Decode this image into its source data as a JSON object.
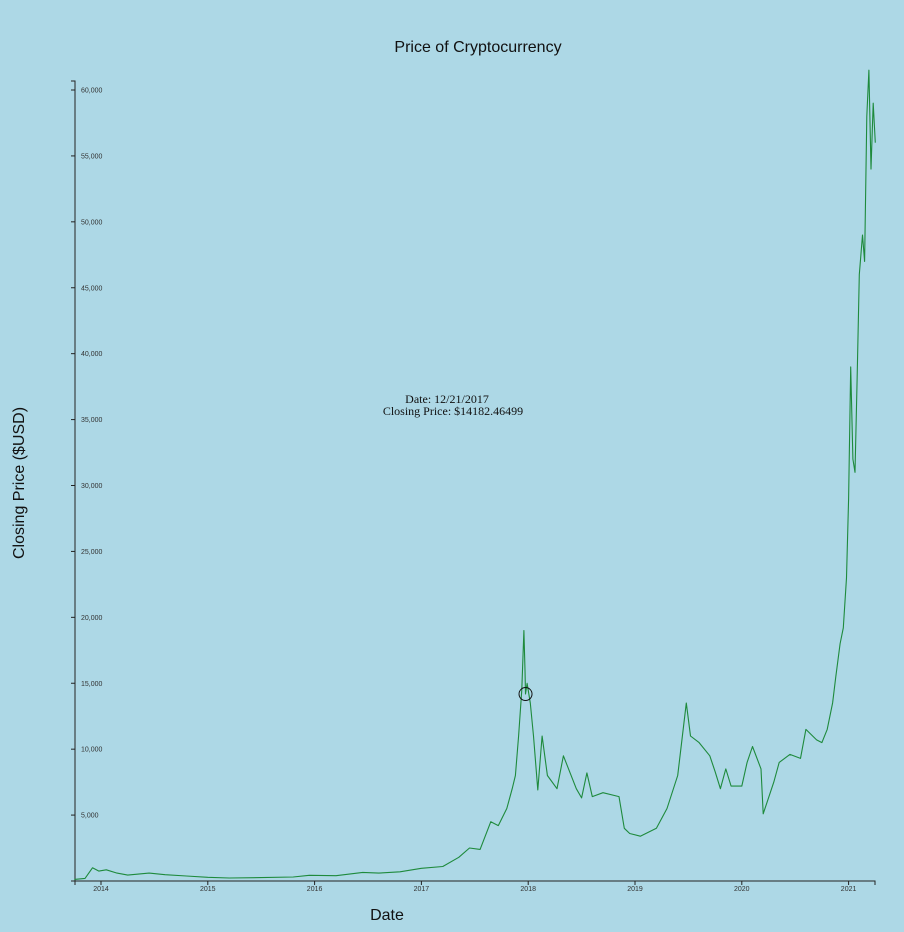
{
  "chart_data": {
    "type": "line",
    "title": "Price of Cryptocurrency",
    "xlabel": "Date",
    "ylabel": "Closing Price ($USD)",
    "xlim": [
      2013.75,
      2021.25
    ],
    "ylim": [
      0,
      60000
    ],
    "x_ticks": [
      "2014",
      "2015",
      "2016",
      "2017",
      "2018",
      "2019",
      "2020",
      "2021"
    ],
    "y_ticks": [
      "5,000",
      "10,000",
      "15,000",
      "20,000",
      "25,000",
      "30,000",
      "35,000",
      "40,000",
      "45,000",
      "50,000",
      "55,000",
      "60,000"
    ],
    "series": [
      {
        "name": "Closing Price",
        "color": "#1e8a3c",
        "points": [
          [
            2013.75,
            120
          ],
          [
            2013.85,
            200
          ],
          [
            2013.92,
            1000
          ],
          [
            2013.98,
            750
          ],
          [
            2014.05,
            850
          ],
          [
            2014.15,
            600
          ],
          [
            2014.25,
            450
          ],
          [
            2014.45,
            600
          ],
          [
            2014.6,
            480
          ],
          [
            2014.8,
            380
          ],
          [
            2015.0,
            280
          ],
          [
            2015.2,
            230
          ],
          [
            2015.5,
            260
          ],
          [
            2015.8,
            300
          ],
          [
            2015.95,
            430
          ],
          [
            2016.2,
            400
          ],
          [
            2016.45,
            650
          ],
          [
            2016.6,
            600
          ],
          [
            2016.8,
            700
          ],
          [
            2017.0,
            960
          ],
          [
            2017.2,
            1100
          ],
          [
            2017.35,
            1800
          ],
          [
            2017.45,
            2500
          ],
          [
            2017.55,
            2400
          ],
          [
            2017.65,
            4500
          ],
          [
            2017.72,
            4200
          ],
          [
            2017.8,
            5500
          ],
          [
            2017.85,
            7000
          ],
          [
            2017.88,
            8000
          ],
          [
            2017.91,
            11000
          ],
          [
            2017.94,
            14500
          ],
          [
            2017.96,
            19000
          ],
          [
            2017.97,
            16000
          ],
          [
            2017.975,
            14182
          ],
          [
            2017.99,
            15000
          ],
          [
            2018.02,
            13500
          ],
          [
            2018.05,
            11000
          ],
          [
            2018.09,
            6900
          ],
          [
            2018.13,
            11000
          ],
          [
            2018.18,
            8000
          ],
          [
            2018.27,
            7000
          ],
          [
            2018.33,
            9500
          ],
          [
            2018.45,
            7000
          ],
          [
            2018.5,
            6300
          ],
          [
            2018.55,
            8200
          ],
          [
            2018.6,
            6400
          ],
          [
            2018.7,
            6700
          ],
          [
            2018.85,
            6400
          ],
          [
            2018.9,
            4000
          ],
          [
            2018.95,
            3600
          ],
          [
            2019.05,
            3400
          ],
          [
            2019.2,
            4000
          ],
          [
            2019.3,
            5500
          ],
          [
            2019.4,
            8000
          ],
          [
            2019.48,
            13500
          ],
          [
            2019.52,
            11000
          ],
          [
            2019.6,
            10500
          ],
          [
            2019.7,
            9500
          ],
          [
            2019.75,
            8300
          ],
          [
            2019.8,
            7000
          ],
          [
            2019.85,
            8500
          ],
          [
            2019.9,
            7200
          ],
          [
            2020.0,
            7200
          ],
          [
            2020.05,
            9000
          ],
          [
            2020.1,
            10200
          ],
          [
            2020.18,
            8500
          ],
          [
            2020.2,
            5100
          ],
          [
            2020.3,
            7500
          ],
          [
            2020.35,
            9000
          ],
          [
            2020.45,
            9600
          ],
          [
            2020.55,
            9300
          ],
          [
            2020.6,
            11500
          ],
          [
            2020.7,
            10700
          ],
          [
            2020.75,
            10500
          ],
          [
            2020.8,
            11500
          ],
          [
            2020.85,
            13500
          ],
          [
            2020.88,
            15500
          ],
          [
            2020.92,
            18000
          ],
          [
            2020.95,
            19200
          ],
          [
            2020.98,
            23000
          ],
          [
            2021.0,
            29000
          ],
          [
            2021.02,
            39000
          ],
          [
            2021.04,
            32000
          ],
          [
            2021.06,
            31000
          ],
          [
            2021.08,
            38000
          ],
          [
            2021.1,
            46000
          ],
          [
            2021.13,
            49000
          ],
          [
            2021.15,
            47000
          ],
          [
            2021.17,
            58000
          ],
          [
            2021.19,
            61500
          ],
          [
            2021.21,
            54000
          ],
          [
            2021.23,
            59000
          ],
          [
            2021.25,
            56000
          ]
        ]
      }
    ],
    "highlight": {
      "x": 2017.975,
      "y": 14182.46499
    },
    "tooltip": {
      "date_line": "Date: 12/21/2017",
      "price_line": "Closing Price: $14182.46499"
    }
  }
}
